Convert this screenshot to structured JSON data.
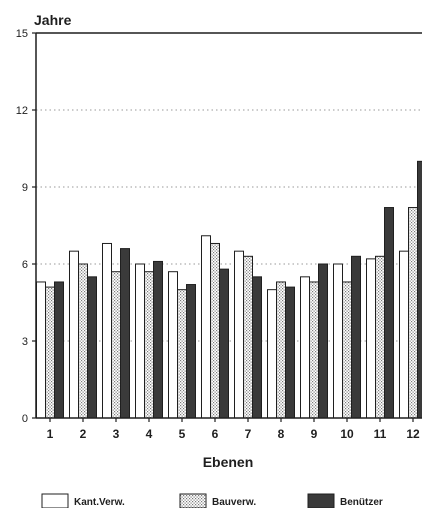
{
  "chart_data": {
    "type": "bar",
    "title": "",
    "ylabel": "Jahre",
    "xlabel": "Ebenen",
    "categories": [
      "1",
      "2",
      "3",
      "4",
      "5",
      "6",
      "7",
      "8",
      "9",
      "10",
      "11",
      "12"
    ],
    "ylim": [
      0,
      15
    ],
    "yticks": [
      0,
      3,
      6,
      9,
      12,
      15
    ],
    "grid": true,
    "legend_position": "bottom",
    "series": [
      {
        "name": "Kant.Verw.",
        "style": "white",
        "values": [
          5.3,
          6.5,
          6.8,
          6.0,
          5.7,
          7.1,
          6.5,
          5.0,
          5.5,
          6.0,
          6.2,
          6.5
        ]
      },
      {
        "name": "Bauverw.",
        "style": "dotted",
        "values": [
          5.1,
          6.0,
          5.7,
          5.7,
          5.0,
          6.8,
          6.3,
          5.3,
          5.3,
          5.3,
          6.3,
          8.2
        ]
      },
      {
        "name": "Benützer",
        "style": "dark",
        "values": [
          5.3,
          5.5,
          6.6,
          6.1,
          5.2,
          5.8,
          5.5,
          5.1,
          6.0,
          6.3,
          8.2,
          10.0
        ]
      }
    ],
    "colors": {
      "axis": "#1f1f1f",
      "grid": "#9a9a9a",
      "dark": "#3a3a3a",
      "white": "#ffffff",
      "dot": "#7a7a7a"
    }
  }
}
